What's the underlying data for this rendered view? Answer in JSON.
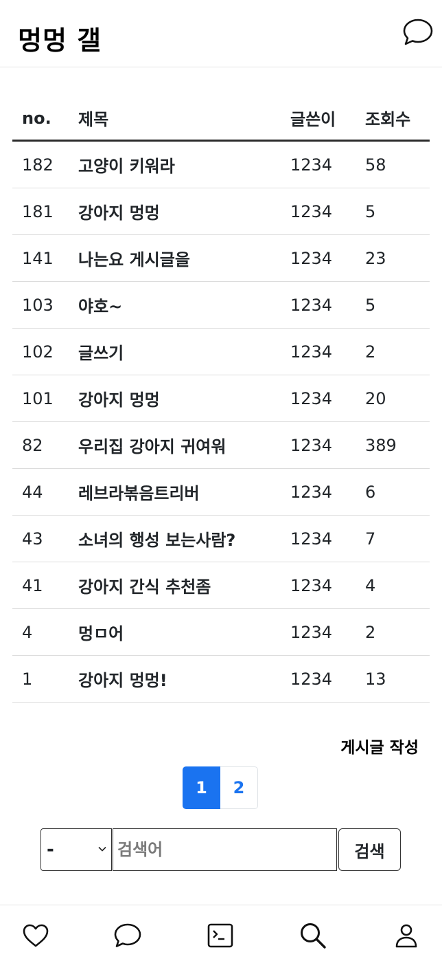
{
  "header": {
    "title": "멍멍 갤",
    "chat_icon": "chat-bubble-icon"
  },
  "table": {
    "columns": {
      "no": "no.",
      "title": "제목",
      "author": "글쓴이",
      "views": "조회수"
    },
    "rows": [
      {
        "no": "182",
        "title": "고양이 키워라",
        "author": "1234",
        "views": "58"
      },
      {
        "no": "181",
        "title": "강아지 멍멍",
        "author": "1234",
        "views": "5"
      },
      {
        "no": "141",
        "title": "나는요 게시글을",
        "author": "1234",
        "views": "23"
      },
      {
        "no": "103",
        "title": "야호~",
        "author": "1234",
        "views": "5"
      },
      {
        "no": "102",
        "title": "글쓰기",
        "author": "1234",
        "views": "2"
      },
      {
        "no": "101",
        "title": "강아지 멍멍",
        "author": "1234",
        "views": "20"
      },
      {
        "no": "82",
        "title": "우리집 강아지 귀여워",
        "author": "1234",
        "views": "389"
      },
      {
        "no": "44",
        "title": "레브라볶음트리버",
        "author": "1234",
        "views": "6"
      },
      {
        "no": "43",
        "title": "소녀의 행성 보는사람?",
        "author": "1234",
        "views": "7"
      },
      {
        "no": "41",
        "title": "강아지 간식 추천좀",
        "author": "1234",
        "views": "4"
      },
      {
        "no": "4",
        "title": "멍ㅁ어",
        "author": "1234",
        "views": "2"
      },
      {
        "no": "1",
        "title": "강아지 멍멍!",
        "author": "1234",
        "views": "13"
      }
    ]
  },
  "write_button": "게시글 작성",
  "pagination": {
    "pages": [
      "1",
      "2"
    ],
    "active": "1"
  },
  "search": {
    "select_value": "-",
    "placeholder": "검색어",
    "value": "",
    "button": "검색"
  },
  "bottom_nav": {
    "items": [
      {
        "name": "heart-icon"
      },
      {
        "name": "chat-bubble-icon"
      },
      {
        "name": "terminal-icon"
      },
      {
        "name": "search-icon"
      },
      {
        "name": "user-icon"
      }
    ]
  },
  "colors": {
    "accent": "#1a73f0",
    "text": "#212529",
    "divider": "#dcdcdc"
  }
}
